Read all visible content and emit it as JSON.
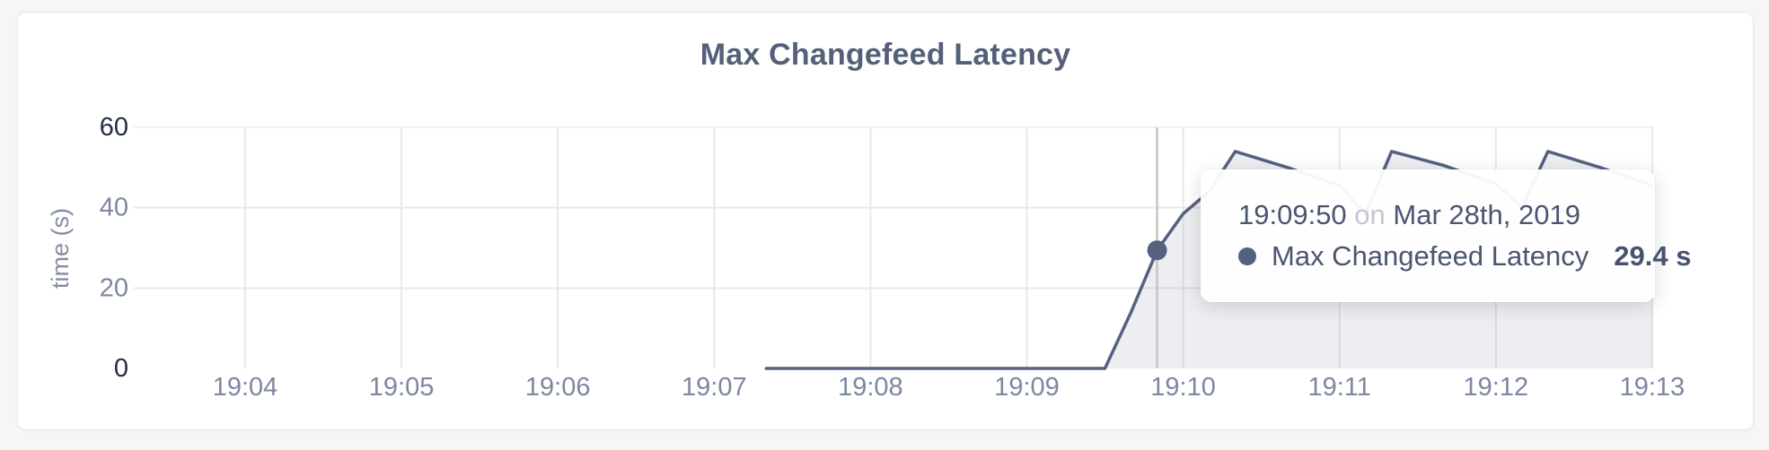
{
  "card": {
    "title": "Max Changefeed Latency"
  },
  "tooltip": {
    "time": "19:09:50",
    "conjunction": "on",
    "date": "Mar 28th, 2019",
    "series": "Max Changefeed Latency",
    "value": "29.4 s"
  },
  "colors": {
    "page_background": "#f5f6f6",
    "card_background": "#ffffff",
    "card_border": "#e7e8e9",
    "title_text": "#546079",
    "line": "#566180",
    "area_fill": "#eceef3",
    "grid": "#e9e9e9",
    "grid_top": "#f2f2f2",
    "hover_guideline": "#c6c6c6",
    "hover_dot": "#566180",
    "tick_major": "#242d42",
    "tick_minor": "#7d87a0",
    "axis_label": "#848da2",
    "tooltip_text": "#4a5670",
    "tooltip_muted": "#c3c7d0"
  },
  "chart_data": {
    "type": "area",
    "title": "Max Changefeed Latency",
    "xlabel": "",
    "ylabel": "time (s)",
    "ylim": [
      0,
      60
    ],
    "y_ticks": [
      0,
      20,
      40,
      60
    ],
    "y_major_ticks": [
      0,
      60
    ],
    "x_ticks": [
      "19:04",
      "19:05",
      "19:06",
      "19:07",
      "19:08",
      "19:09",
      "19:10",
      "19:11",
      "19:12",
      "19:13"
    ],
    "grid": true,
    "legend_position": "none",
    "series": [
      {
        "name": "Max Changefeed Latency",
        "unit": "s",
        "points": [
          [
            "19:07:20",
            0
          ],
          [
            "19:09:30",
            0
          ],
          [
            "19:09:40",
            14
          ],
          [
            "19:09:50",
            29.4
          ],
          [
            "19:10:00",
            38.5
          ],
          [
            "19:10:10",
            44
          ],
          [
            "19:10:20",
            54
          ],
          [
            "19:10:40",
            50
          ],
          [
            "19:11:00",
            45.5
          ],
          [
            "19:11:10",
            38.5
          ],
          [
            "19:11:20",
            54
          ],
          [
            "19:11:40",
            50.5
          ],
          [
            "19:12:00",
            46
          ],
          [
            "19:12:10",
            40
          ],
          [
            "19:12:20",
            54
          ],
          [
            "19:12:40",
            50
          ],
          [
            "19:13:00",
            45.5
          ]
        ]
      }
    ],
    "hover": {
      "time": "19:09:50",
      "value": 29.4,
      "value_label": "29.4 s"
    }
  }
}
